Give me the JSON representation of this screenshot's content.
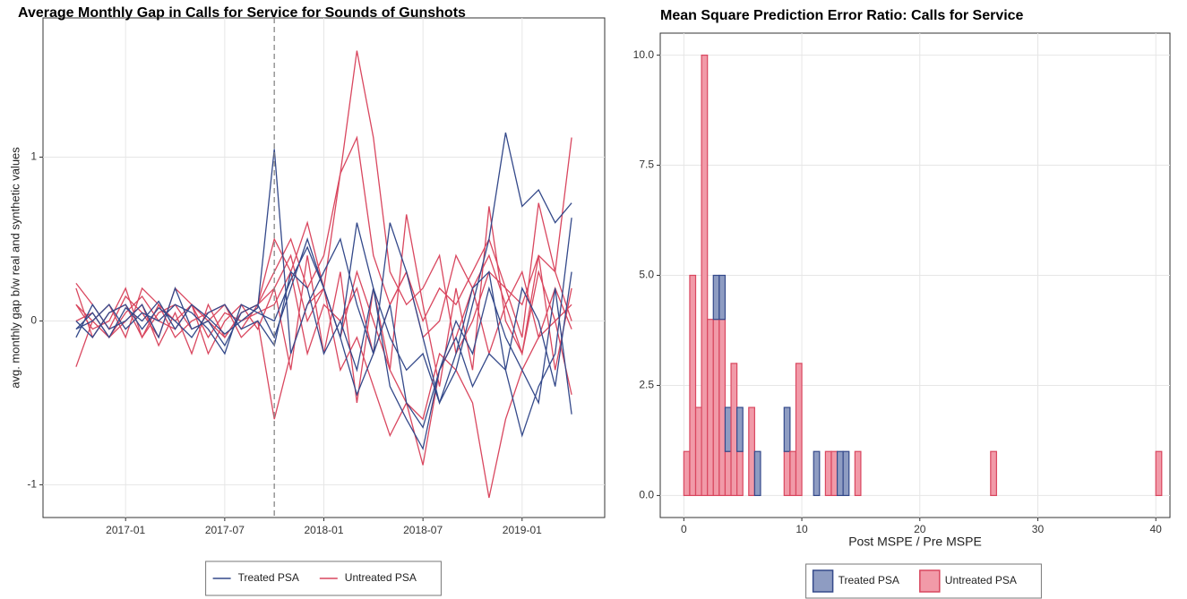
{
  "chart_data": [
    {
      "type": "line",
      "title": "Average Monthly Gap in Calls for Service for Sounds of Gunshots",
      "ylabel": "avg. monthly gap b/w real and synthetic values",
      "x": [
        "2016-10",
        "2016-11",
        "2016-12",
        "2017-01",
        "2017-02",
        "2017-03",
        "2017-04",
        "2017-05",
        "2017-06",
        "2017-07",
        "2017-08",
        "2017-09",
        "2017-10",
        "2017-11",
        "2017-12",
        "2018-01",
        "2018-02",
        "2018-03",
        "2018-04",
        "2018-05",
        "2018-06",
        "2018-07",
        "2018-08",
        "2018-09",
        "2018-10",
        "2018-11",
        "2018-12",
        "2019-01",
        "2019-02",
        "2019-03",
        "2019-04"
      ],
      "xlim": [
        "2016-08",
        "2019-06"
      ],
      "xticks": [
        "2017-01",
        "2017-07",
        "2018-01",
        "2018-07",
        "2019-01"
      ],
      "ylim": [
        -1.2,
        1.85
      ],
      "yticks": [
        -1,
        0,
        1
      ],
      "vline": "2017-10",
      "grid": true,
      "series": [
        {
          "name": "Treated PSA",
          "color": "#34498a",
          "values": [
            [
              -0.05,
              0.05,
              -0.1,
              0.08,
              0.0,
              0.12,
              -0.05,
              0.1,
              0.02,
              -0.08,
              0.0,
              0.08,
              1.05,
              -0.2,
              0.1,
              0.3,
              0.5,
              0.1,
              -0.2,
              0.6,
              0.3,
              -0.1,
              -0.5,
              -0.3,
              0.1,
              0.5,
              1.15,
              0.7,
              0.8,
              0.6,
              0.72
            ],
            [
              -0.1,
              0.1,
              -0.05,
              0.0,
              0.1,
              -0.1,
              0.2,
              -0.05,
              0.0,
              -0.15,
              0.05,
              0.1,
              -0.1,
              0.2,
              0.5,
              0.2,
              -0.1,
              -0.45,
              -0.2,
              0.1,
              -0.5,
              -0.65,
              -0.3,
              -0.1,
              -0.4,
              -0.2,
              -0.3,
              -0.7,
              -0.4,
              -0.2,
              0.63
            ],
            [
              0.0,
              -0.1,
              0.05,
              0.1,
              -0.05,
              0.08,
              0.0,
              -0.1,
              0.05,
              0.1,
              -0.05,
              0.0,
              -0.15,
              0.3,
              0.2,
              -0.2,
              0.0,
              -0.3,
              0.2,
              -0.4,
              -0.6,
              -0.78,
              -0.3,
              0.0,
              -0.2,
              0.2,
              -0.1,
              -0.3,
              -0.5,
              0.2,
              -0.57
            ],
            [
              -0.05,
              0.0,
              0.1,
              -0.05,
              0.05,
              0.0,
              0.1,
              0.05,
              -0.05,
              -0.2,
              0.1,
              0.05,
              0.0,
              0.25,
              0.45,
              0.2,
              -0.1,
              0.6,
              0.2,
              -0.1,
              -0.3,
              -0.2,
              -0.5,
              -0.2,
              0.2,
              0.3,
              -0.3,
              0.2,
              0.0,
              -0.4,
              0.3
            ]
          ]
        },
        {
          "name": "Untreated PSA",
          "color": "#d9475f",
          "values": [
            [
              0.1,
              0.0,
              -0.1,
              0.05,
              0.15,
              0.0,
              -0.05,
              0.1,
              0.0,
              -0.1,
              0.05,
              0.1,
              0.3,
              0.5,
              0.2,
              0.4,
              0.9,
              1.65,
              1.12,
              0.3,
              0.1,
              0.2,
              0.4,
              -0.2,
              0.0,
              0.3,
              0.2,
              0.1,
              0.4,
              0.3,
              1.12
            ],
            [
              0.2,
              -0.1,
              0.05,
              0.1,
              -0.1,
              0.05,
              0.1,
              -0.05,
              0.0,
              0.1,
              -0.1,
              0.0,
              -0.6,
              -0.2,
              0.1,
              0.2,
              -0.3,
              -0.1,
              -0.4,
              -0.7,
              -0.5,
              -0.6,
              -0.2,
              -0.3,
              -0.5,
              -1.08,
              -0.6,
              -0.3,
              -0.1,
              0.0,
              -0.45
            ],
            [
              -0.28,
              0.0,
              0.1,
              -0.1,
              0.2,
              0.1,
              -0.1,
              0.0,
              0.05,
              0.1,
              -0.05,
              0.1,
              0.5,
              0.3,
              0.6,
              0.2,
              -0.1,
              0.3,
              0.0,
              -0.3,
              -0.5,
              -0.88,
              -0.3,
              -0.1,
              0.2,
              0.4,
              0.1,
              -0.2,
              0.3,
              0.0,
              0.1
            ],
            [
              0.23,
              0.1,
              -0.05,
              0.15,
              0.05,
              -0.1,
              0.2,
              0.1,
              -0.2,
              0.0,
              0.1,
              -0.05,
              0.2,
              0.4,
              0.0,
              0.2,
              0.9,
              1.12,
              0.4,
              0.1,
              0.3,
              0.0,
              0.2,
              0.1,
              0.3,
              0.5,
              0.2,
              -0.1,
              0.72,
              0.3,
              0.0
            ],
            [
              0.0,
              0.05,
              -0.1,
              0.0,
              0.1,
              -0.15,
              0.05,
              -0.2,
              0.1,
              -0.1,
              0.05,
              0.1,
              0.2,
              -0.3,
              0.4,
              -0.2,
              0.3,
              -0.5,
              0.2,
              -0.3,
              0.65,
              0.1,
              -0.4,
              0.2,
              -0.3,
              0.7,
              0.0,
              -0.2,
              0.4,
              -0.3,
              0.2
            ],
            [
              0.1,
              -0.05,
              0.0,
              0.2,
              -0.1,
              0.1,
              0.0,
              0.1,
              -0.1,
              0.05,
              0.0,
              0.05,
              0.1,
              0.3,
              -0.2,
              0.1,
              0.0,
              0.2,
              -0.2,
              0.1,
              0.3,
              -0.1,
              0.0,
              0.4,
              0.2,
              -0.2,
              0.1,
              0.3,
              -0.1,
              0.2,
              -0.05
            ]
          ]
        }
      ]
    },
    {
      "type": "histogram",
      "title": "Mean Square Prediction Error Ratio: Calls for Service",
      "xlabel": "Post MSPE / Pre MSPE",
      "bins": [
        0,
        0.5,
        1,
        1.5,
        2,
        2.5,
        3,
        3.5,
        4,
        4.5,
        5,
        5.5,
        6,
        6.5,
        7,
        7.5,
        8,
        8.5,
        9,
        9.5,
        10,
        10.5,
        11,
        11.5,
        12,
        12.5,
        13,
        13.5,
        14,
        14.5,
        15,
        26,
        26.5,
        40,
        40.5
      ],
      "xlim": [
        -2,
        41.2
      ],
      "xticks": [
        0,
        10,
        20,
        30,
        40
      ],
      "ylim": [
        -0.5,
        10.5
      ],
      "yticks": [
        {
          "value": 0,
          "label": "0.0"
        },
        {
          "value": 2.5,
          "label": "2.5"
        },
        {
          "value": 5,
          "label": "5.0"
        },
        {
          "value": 7.5,
          "label": "7.5"
        },
        {
          "value": 10,
          "label": "10.0"
        }
      ],
      "grid": true,
      "stacked": true,
      "series": [
        {
          "name": "Treated PSA",
          "color": "#34498a",
          "fill": "#8e9cc2",
          "values": [
            0,
            0,
            0,
            0,
            0,
            1,
            1,
            1,
            0,
            1,
            0,
            0,
            1,
            0,
            0,
            0,
            0,
            1,
            0,
            0,
            0,
            0,
            1,
            0,
            0,
            0,
            1,
            1,
            0,
            0,
            0,
            0,
            0,
            0
          ]
        },
        {
          "name": "Untreated PSA",
          "color": "#d9475f",
          "fill": "#f19aa8",
          "values": [
            1,
            5,
            2,
            10,
            4,
            4,
            4,
            1,
            3,
            1,
            0,
            2,
            0,
            0,
            0,
            0,
            0,
            1,
            1,
            3,
            0,
            0,
            0,
            0,
            1,
            1,
            0,
            0,
            0,
            1,
            0,
            1,
            0,
            1
          ]
        }
      ]
    }
  ]
}
